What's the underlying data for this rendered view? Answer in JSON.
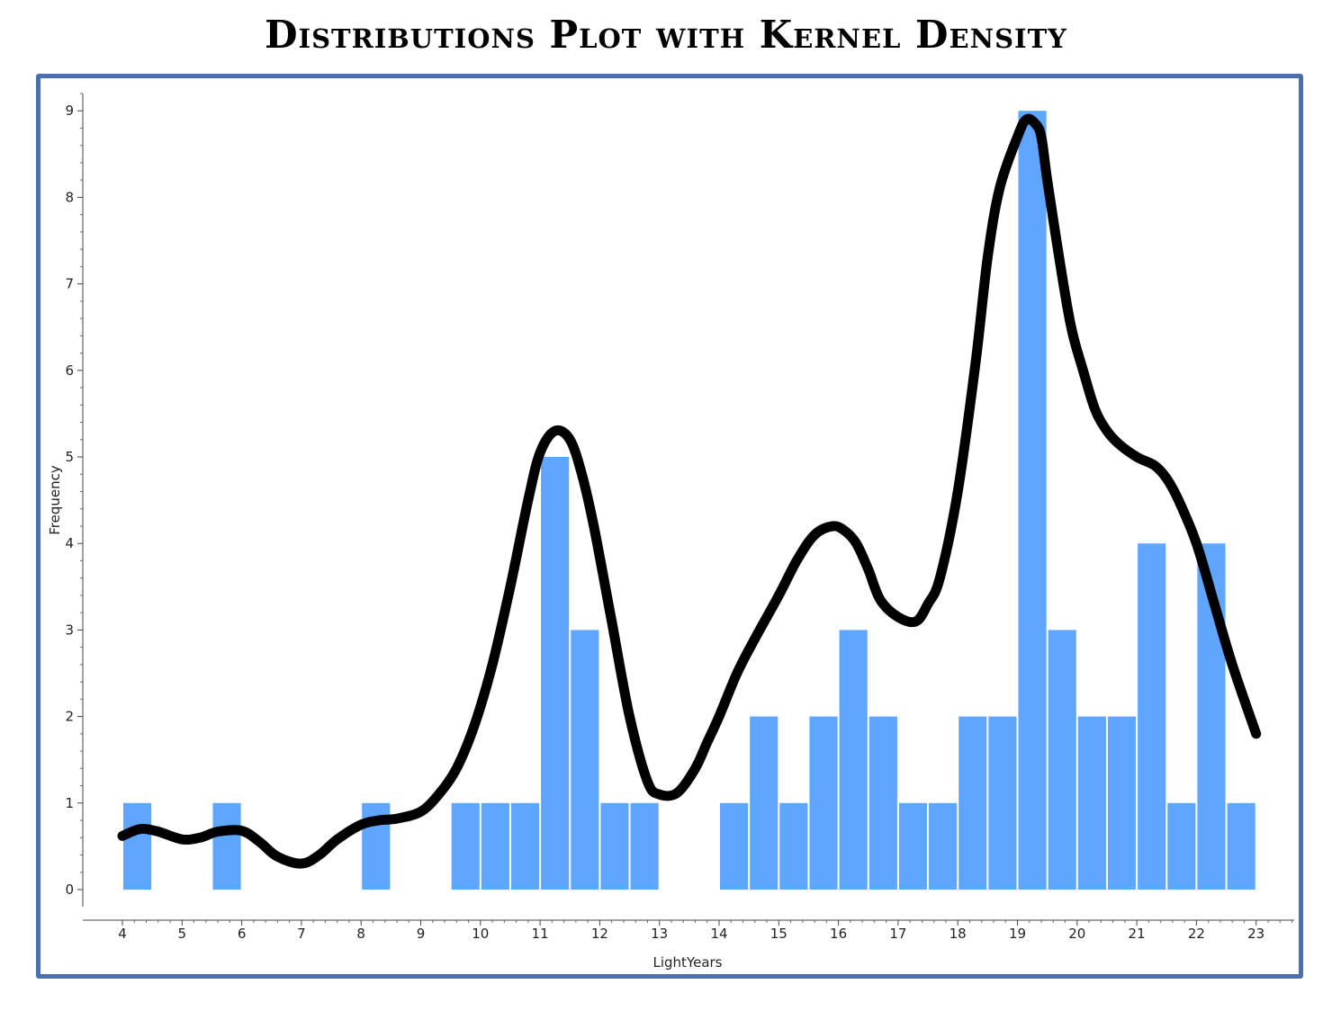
{
  "title": "Distributions Plot with Kernel Density",
  "colors": {
    "bar": "#5ea6ff",
    "density": "#000000",
    "frame": "#4a6fae"
  },
  "chart_data": {
    "type": "bar",
    "title": "Distributions Plot with Kernel Density",
    "xlabel": "LightYears",
    "ylabel": "Frequency",
    "xlim": [
      3.4,
      23.6
    ],
    "ylim": [
      -0.2,
      9.2
    ],
    "xticks": [
      4,
      5,
      6,
      7,
      8,
      9,
      10,
      11,
      12,
      13,
      14,
      15,
      16,
      17,
      18,
      19,
      20,
      21,
      22,
      23
    ],
    "yticks": [
      0,
      1,
      2,
      3,
      4,
      5,
      6,
      7,
      8,
      9
    ],
    "bin_width": 0.5,
    "bins": [
      {
        "start": 4.0,
        "count": 1
      },
      {
        "start": 5.5,
        "count": 1
      },
      {
        "start": 8.0,
        "count": 1
      },
      {
        "start": 9.5,
        "count": 1
      },
      {
        "start": 10.0,
        "count": 1
      },
      {
        "start": 10.5,
        "count": 1
      },
      {
        "start": 11.0,
        "count": 5
      },
      {
        "start": 11.5,
        "count": 3
      },
      {
        "start": 12.0,
        "count": 1
      },
      {
        "start": 12.5,
        "count": 1
      },
      {
        "start": 14.0,
        "count": 1
      },
      {
        "start": 14.5,
        "count": 2
      },
      {
        "start": 15.0,
        "count": 1
      },
      {
        "start": 15.5,
        "count": 2
      },
      {
        "start": 16.0,
        "count": 3
      },
      {
        "start": 16.5,
        "count": 2
      },
      {
        "start": 17.0,
        "count": 1
      },
      {
        "start": 17.5,
        "count": 1
      },
      {
        "start": 18.0,
        "count": 2
      },
      {
        "start": 18.5,
        "count": 2
      },
      {
        "start": 19.0,
        "count": 9
      },
      {
        "start": 19.5,
        "count": 3
      },
      {
        "start": 20.0,
        "count": 2
      },
      {
        "start": 20.5,
        "count": 2
      },
      {
        "start": 21.0,
        "count": 4
      },
      {
        "start": 21.5,
        "count": 1
      },
      {
        "start": 22.0,
        "count": 4
      },
      {
        "start": 22.5,
        "count": 1
      }
    ],
    "density_curve": {
      "x": [
        4.0,
        4.3,
        4.6,
        5.0,
        5.3,
        5.6,
        6.0,
        6.3,
        6.6,
        7.0,
        7.3,
        7.6,
        8.0,
        8.3,
        8.6,
        9.0,
        9.3,
        9.6,
        9.9,
        10.2,
        10.5,
        10.8,
        11.0,
        11.25,
        11.5,
        11.7,
        11.9,
        12.2,
        12.5,
        12.8,
        13.0,
        13.3,
        13.6,
        13.8,
        14.0,
        14.3,
        14.6,
        15.0,
        15.3,
        15.6,
        15.9,
        16.1,
        16.3,
        16.5,
        16.7,
        17.0,
        17.3,
        17.5,
        17.7,
        18.0,
        18.3,
        18.5,
        18.7,
        19.0,
        19.15,
        19.3,
        19.4,
        19.5,
        19.7,
        19.9,
        20.1,
        20.3,
        20.5,
        20.7,
        21.0,
        21.3,
        21.5,
        21.7,
        22.0,
        22.3,
        22.6,
        23.0
      ],
      "y": [
        0.62,
        0.7,
        0.67,
        0.58,
        0.6,
        0.67,
        0.68,
        0.55,
        0.38,
        0.3,
        0.4,
        0.58,
        0.75,
        0.8,
        0.82,
        0.9,
        1.1,
        1.4,
        1.9,
        2.6,
        3.5,
        4.5,
        5.05,
        5.3,
        5.2,
        4.8,
        4.2,
        3.1,
        2.0,
        1.25,
        1.1,
        1.12,
        1.4,
        1.7,
        2.0,
        2.5,
        2.9,
        3.4,
        3.8,
        4.1,
        4.2,
        4.15,
        4.0,
        3.7,
        3.35,
        3.15,
        3.1,
        3.3,
        3.6,
        4.6,
        6.1,
        7.3,
        8.1,
        8.7,
        8.9,
        8.85,
        8.7,
        8.2,
        7.3,
        6.5,
        6.0,
        5.55,
        5.3,
        5.15,
        5.0,
        4.9,
        4.75,
        4.5,
        4.0,
        3.3,
        2.6,
        1.8
      ]
    }
  }
}
